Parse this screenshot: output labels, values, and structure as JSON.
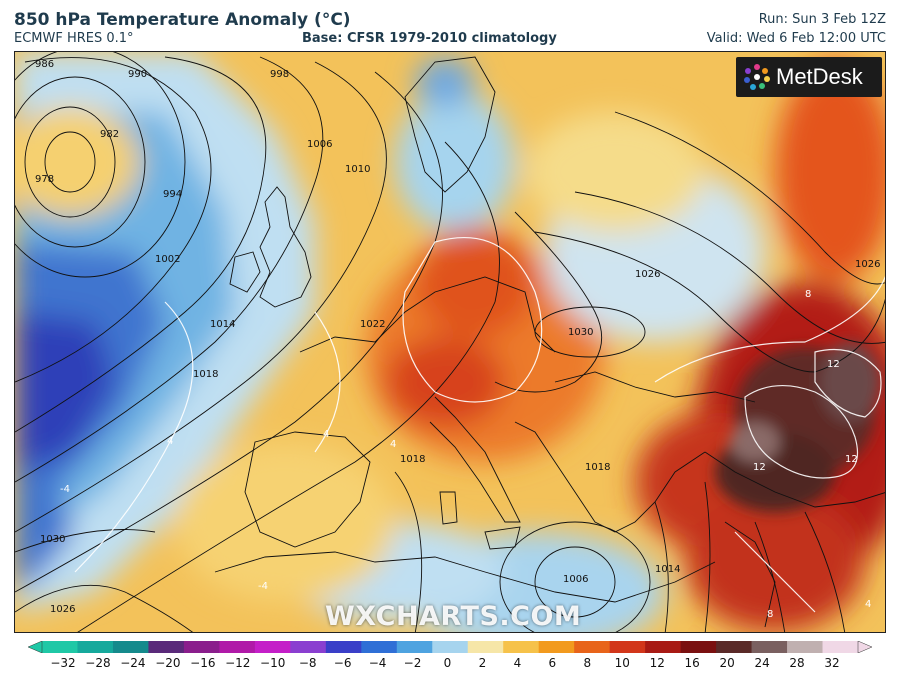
{
  "header": {
    "title": "850 hPa Temperature Anomaly (°C)",
    "model": "ECMWF HRES 0.1°",
    "base": "Base: CFSR 1979-2010 climatology",
    "run": "Run: Sun 3 Feb 12Z",
    "valid": "Valid: Wed 6 Feb 12:00 UTC"
  },
  "logo": {
    "text": "MetDesk"
  },
  "watermark": "WXCHARTS.COM",
  "map": {
    "isobar_labels": [
      "986",
      "990",
      "998",
      "982",
      "978",
      "994",
      "1006",
      "1010",
      "1002",
      "1014",
      "1018",
      "1022",
      "1026",
      "1030",
      "1026",
      "1030",
      "1026",
      "1006",
      "1018",
      "1018",
      "1014"
    ],
    "anomaly_labels": [
      "12",
      "12",
      "12",
      "8",
      "8",
      "4",
      "4",
      "4",
      "-4",
      "-4",
      "4"
    ]
  },
  "colorbar": {
    "ticks": [
      "−32",
      "−28",
      "−24",
      "−20",
      "−16",
      "−12",
      "−10",
      "−8",
      "−6",
      "−4",
      "−2",
      "0",
      "2",
      "4",
      "6",
      "8",
      "10",
      "12",
      "16",
      "20",
      "24",
      "28",
      "32"
    ],
    "colors": [
      "#1fc8a6",
      "#16a99c",
      "#158a8c",
      "#5a2a7a",
      "#8a1e8c",
      "#b01aa8",
      "#c41fc8",
      "#8a3fd0",
      "#3a3fc8",
      "#2f6fd6",
      "#4ea3e0",
      "#a6d4ee",
      "#f6e6a8",
      "#f6c24a",
      "#f29a1e",
      "#e8641a",
      "#d2361a",
      "#a81a14",
      "#7a1010",
      "#5a2a28",
      "#7a6060",
      "#c0b0b0",
      "#f0d8e6"
    ]
  }
}
